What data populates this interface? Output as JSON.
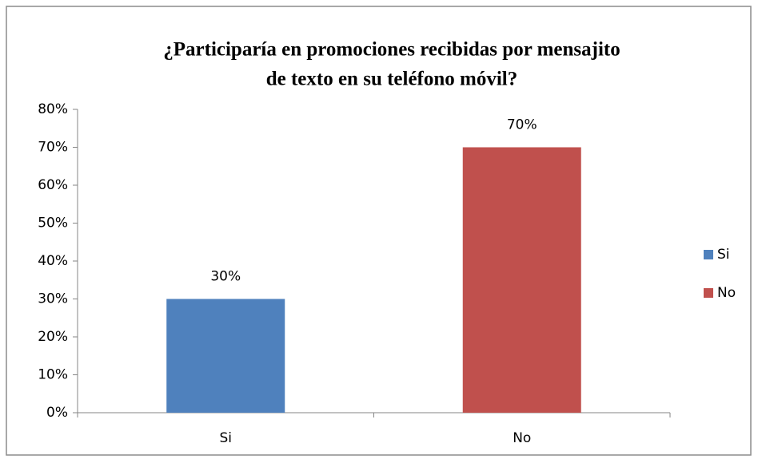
{
  "chart_data": {
    "type": "bar",
    "title": [
      "¿Participaría  en promociones recibidas por mensajito",
      "de texto en su teléfono móvil?"
    ],
    "categories": [
      "Si",
      "No"
    ],
    "values": [
      30,
      70
    ],
    "value_labels": [
      "30%",
      "70%"
    ],
    "colors": [
      "#4f81bd",
      "#c0504d"
    ],
    "ylim": [
      0,
      80
    ],
    "yticks": [
      {
        "value": 0,
        "label": "0%"
      },
      {
        "value": 10,
        "label": "10%"
      },
      {
        "value": 20,
        "label": "20%"
      },
      {
        "value": 30,
        "label": "30%"
      },
      {
        "value": 40,
        "label": "40%"
      },
      {
        "value": 50,
        "label": "50%"
      },
      {
        "value": 60,
        "label": "60%"
      },
      {
        "value": 70,
        "label": "70%"
      },
      {
        "value": 80,
        "label": "80%"
      }
    ],
    "legend": "right"
  }
}
